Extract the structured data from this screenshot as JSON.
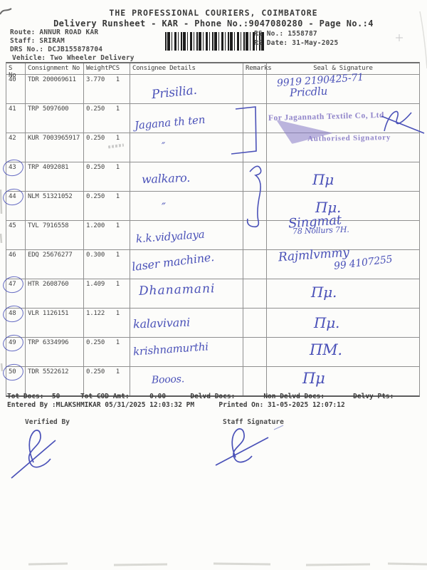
{
  "header": {
    "company": "THE PROFESSIONAL COURIERS, COIMBATORE",
    "runsheet_line": "Delivery Runsheet - KAR - Phone No.:9047080280 - Page No.:4",
    "route": "Route: ANNUR ROAD KAR",
    "staff": "Staff: SRIRAM",
    "drs_no": "DRS No.: DCJB155878704",
    "vehicle": "Vehicle: Two Wheeler Delivery",
    "rs_no": "RS No.: 1558787",
    "rs_date": "RS Date: 31-May-2025"
  },
  "table": {
    "headers": {
      "s_no": "S No",
      "consignment": "Consignment No",
      "weight": "Weight",
      "pcs": "PCS",
      "consignee": "Consignee Details",
      "remarks": "Remarks",
      "seal": "Seal & Signature"
    },
    "rows": [
      {
        "s_no": "40",
        "consignment": "TDR 200069611",
        "weight": "3.770",
        "pcs": "1",
        "circled": false,
        "remarks": "",
        "consignee_hw": "Prisilia.",
        "seal_hw": [
          "9919 2190425-71",
          "Pricdlu"
        ]
      },
      {
        "s_no": "41",
        "consignment": "TRP 5097600",
        "weight": "0.250",
        "pcs": "1",
        "circled": false,
        "remarks": "",
        "consignee_hw": "Jagana th ten",
        "seal_hw": []
      },
      {
        "s_no": "42",
        "consignment": "KUR 7003965917",
        "weight": "0.250",
        "pcs": "1",
        "circled": false,
        "remarks": "",
        "consignee_hw": "″",
        "seal_hw": []
      },
      {
        "s_no": "43",
        "consignment": "TRP 4092081",
        "weight": "0.250",
        "pcs": "1",
        "circled": true,
        "remarks": "",
        "consignee_hw": "walkaro.",
        "seal_hw": [
          "Πμ"
        ]
      },
      {
        "s_no": "44",
        "consignment": "NLM 51321052",
        "weight": "0.250",
        "pcs": "1",
        "circled": true,
        "remarks": "",
        "consignee_hw": "″",
        "seal_hw": [
          "Πμ."
        ]
      },
      {
        "s_no": "45",
        "consignment": "TVL 7916558",
        "weight": "1.200",
        "pcs": "1",
        "circled": false,
        "remarks": "",
        "consignee_hw": "k.k.vidyalaya",
        "seal_hw": [
          "Singmat",
          "78 Nollurs 7H."
        ]
      },
      {
        "s_no": "46",
        "consignment": "EDQ 25676277",
        "weight": "0.300",
        "pcs": "1",
        "circled": false,
        "remarks": "",
        "consignee_hw": "laser machine.",
        "seal_hw": [
          "Rajmlvmmy",
          "99 4107255"
        ]
      },
      {
        "s_no": "47",
        "consignment": "HTR 2608760",
        "weight": "1.409",
        "pcs": "1",
        "circled": true,
        "remarks": "",
        "consignee_hw": "Dhanamani",
        "seal_hw": [
          "Πμ."
        ]
      },
      {
        "s_no": "48",
        "consignment": "VLR 1126151",
        "weight": "1.122",
        "pcs": "1",
        "circled": true,
        "remarks": "",
        "consignee_hw": "kalavivani",
        "seal_hw": [
          "Πμ."
        ]
      },
      {
        "s_no": "49",
        "consignment": "TRP 6334996",
        "weight": "0.250",
        "pcs": "1",
        "circled": true,
        "remarks": "",
        "consignee_hw": "krishnamurthi",
        "seal_hw": [
          "ΠΜ."
        ]
      },
      {
        "s_no": "50",
        "consignment": "TDR 5522612",
        "weight": "0.250",
        "pcs": "1",
        "circled": true,
        "remarks": "",
        "consignee_hw": "Booos.",
        "seal_hw": [
          "Πμ"
        ]
      }
    ]
  },
  "stamp": {
    "line1": "For Jagannath Textile Co, Ltd",
    "line2": "Authorised Signatory"
  },
  "footer": {
    "totals": "Tot Docs:  50     Tot COD Amt:     0.00      Delvd Docs:       Non Delvd Docs:       Delvy Pts:",
    "entered": "Entered By :MLAKSHMIKAR 05/31/2025 12:03:32 PM      Printed On: 31-05-2025 12:07:12",
    "verified_label": "Verified By",
    "staff_label": "Staff Signature"
  },
  "colors": {
    "ink_blue": "#4a51b8",
    "stamp_purple": "#8578c5",
    "print_gray": "#454545",
    "grid_gray": "#8f8f8f"
  }
}
